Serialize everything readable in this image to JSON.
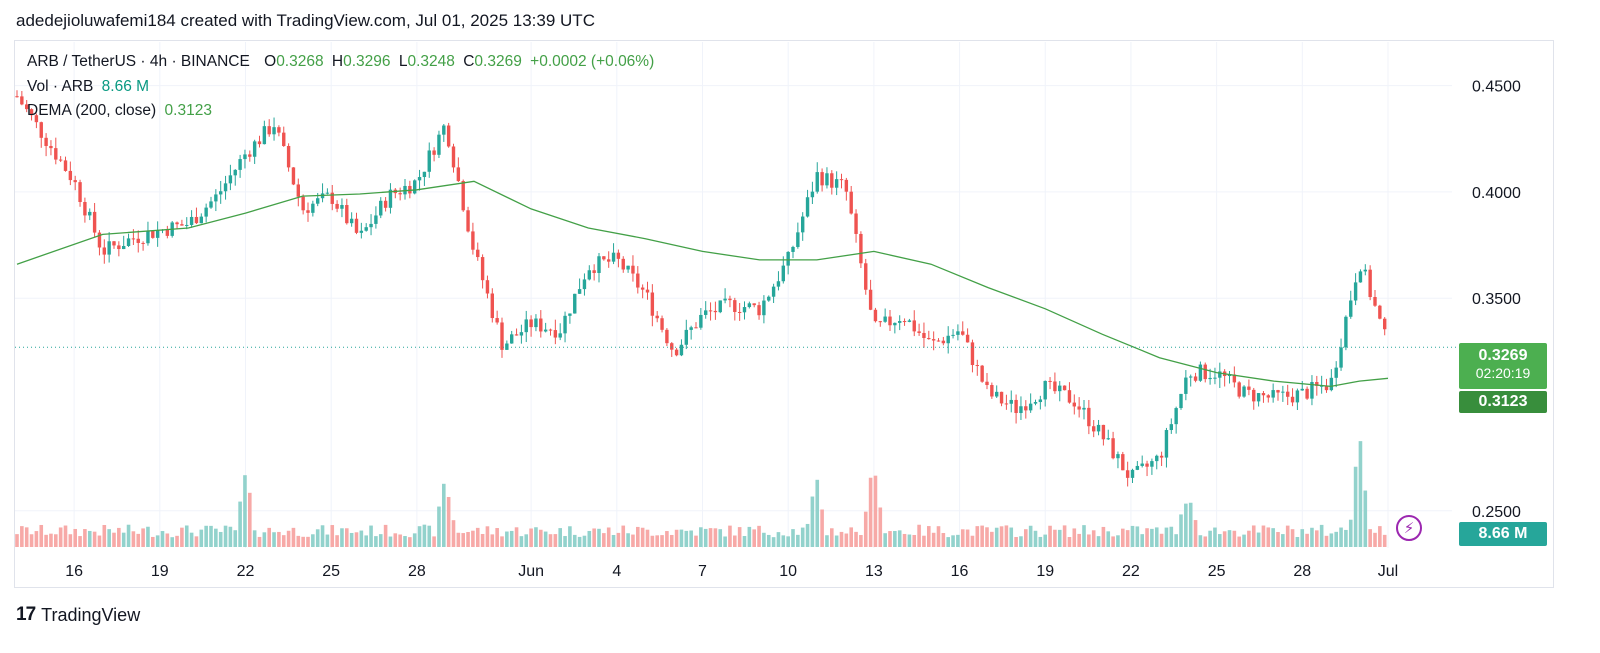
{
  "caption": "adedejioluwafemi184 created with TradingView.com, Jul 01, 2025 13:39 UTC",
  "legend": {
    "symbol": "ARB / TetherUS · 4h · BINANCE",
    "o_label": "O",
    "o_value": "0.3268",
    "h_label": "H",
    "h_value": "0.3296",
    "l_label": "L",
    "l_value": "0.3248",
    "c_label": "C",
    "c_value": "0.3269",
    "change": "+0.0002 (+0.06%)",
    "vol_label": "Vol · ARB",
    "vol_value": "8.66 M",
    "dema_label": "DEMA (200, close)",
    "dema_value": "0.3123"
  },
  "tags": {
    "last_price": "0.3269",
    "countdown": "02:20:19",
    "dema": "0.3123",
    "volume": "8.66 M"
  },
  "colors": {
    "up": "#26a69a",
    "down": "#ef5350",
    "dema": "#43a047",
    "vol_up": "#92d2cc",
    "vol_down": "#f7a9a7"
  },
  "footer": {
    "brand": "TradingView",
    "logo_icon": "tradingview-logo-icon"
  },
  "chart_data": {
    "type": "candlestick",
    "symbol": "ARB / TetherUS",
    "interval": "4h",
    "exchange": "BINANCE",
    "price_axis": {
      "labels": [
        "0.4500",
        "0.4000",
        "0.3500",
        "0.2500"
      ],
      "range": [
        0.2325,
        0.4705
      ]
    },
    "x_ticks": [
      {
        "label": "16",
        "date": "2025-05-16"
      },
      {
        "label": "19",
        "date": "2025-05-19"
      },
      {
        "label": "22",
        "date": "2025-05-22"
      },
      {
        "label": "25",
        "date": "2025-05-25"
      },
      {
        "label": "28",
        "date": "2025-05-28"
      },
      {
        "label": "Jun",
        "date": "2025-06-01"
      },
      {
        "label": "4",
        "date": "2025-06-04"
      },
      {
        "label": "7",
        "date": "2025-06-07"
      },
      {
        "label": "10",
        "date": "2025-06-10"
      },
      {
        "label": "13",
        "date": "2025-06-13"
      },
      {
        "label": "16",
        "date": "2025-06-16"
      },
      {
        "label": "19",
        "date": "2025-06-19"
      },
      {
        "label": "22",
        "date": "2025-06-22"
      },
      {
        "label": "25",
        "date": "2025-06-25"
      },
      {
        "label": "28",
        "date": "2025-06-28"
      },
      {
        "label": "Jul",
        "date": "2025-07-01"
      }
    ],
    "x_range": [
      "2025-05-14",
      "2025-07-01"
    ],
    "close_path": [
      [
        "2025-05-14",
        0.445
      ],
      [
        "2025-05-15",
        0.425
      ],
      [
        "2025-05-16",
        0.405
      ],
      [
        "2025-05-17",
        0.372
      ],
      [
        "2025-05-18",
        0.378
      ],
      [
        "2025-05-19",
        0.382
      ],
      [
        "2025-05-20",
        0.385
      ],
      [
        "2025-05-21",
        0.398
      ],
      [
        "2025-05-22",
        0.418
      ],
      [
        "2025-05-23",
        0.432
      ],
      [
        "2025-05-24",
        0.392
      ],
      [
        "2025-05-25",
        0.398
      ],
      [
        "2025-05-26",
        0.378
      ],
      [
        "2025-05-27",
        0.398
      ],
      [
        "2025-05-28",
        0.405
      ],
      [
        "2025-05-29",
        0.432
      ],
      [
        "2025-05-30",
        0.372
      ],
      [
        "2025-05-31",
        0.328
      ],
      [
        "2025-06-01",
        0.338
      ],
      [
        "2025-06-02",
        0.335
      ],
      [
        "2025-06-03",
        0.365
      ],
      [
        "2025-06-04",
        0.368
      ],
      [
        "2025-06-05",
        0.352
      ],
      [
        "2025-06-06",
        0.325
      ],
      [
        "2025-06-07",
        0.342
      ],
      [
        "2025-06-08",
        0.347
      ],
      [
        "2025-06-09",
        0.345
      ],
      [
        "2025-06-10",
        0.368
      ],
      [
        "2025-06-11",
        0.408
      ],
      [
        "2025-06-12",
        0.402
      ],
      [
        "2025-06-13",
        0.335
      ],
      [
        "2025-06-14",
        0.342
      ],
      [
        "2025-06-15",
        0.328
      ],
      [
        "2025-06-16",
        0.335
      ],
      [
        "2025-06-17",
        0.305
      ],
      [
        "2025-06-18",
        0.298
      ],
      [
        "2025-06-19",
        0.308
      ],
      [
        "2025-06-20",
        0.302
      ],
      [
        "2025-06-21",
        0.285
      ],
      [
        "2025-06-22",
        0.265
      ],
      [
        "2025-06-23",
        0.275
      ],
      [
        "2025-06-24",
        0.315
      ],
      [
        "2025-06-25",
        0.315
      ],
      [
        "2025-06-26",
        0.305
      ],
      [
        "2025-06-27",
        0.303
      ],
      [
        "2025-06-28",
        0.305
      ],
      [
        "2025-06-29",
        0.31
      ],
      [
        "2025-06-30",
        0.368
      ],
      [
        "2025-07-01",
        0.3269
      ]
    ],
    "dema_path": [
      [
        "2025-05-14",
        0.366
      ],
      [
        "2025-05-17",
        0.38
      ],
      [
        "2025-05-20",
        0.383
      ],
      [
        "2025-05-22",
        0.39
      ],
      [
        "2025-05-24",
        0.398
      ],
      [
        "2025-05-26",
        0.399
      ],
      [
        "2025-05-28",
        0.401
      ],
      [
        "2025-05-30",
        0.405
      ],
      [
        "2025-06-01",
        0.392
      ],
      [
        "2025-06-03",
        0.383
      ],
      [
        "2025-06-05",
        0.378
      ],
      [
        "2025-06-07",
        0.372
      ],
      [
        "2025-06-09",
        0.368
      ],
      [
        "2025-06-11",
        0.368
      ],
      [
        "2025-06-13",
        0.372
      ],
      [
        "2025-06-15",
        0.366
      ],
      [
        "2025-06-17",
        0.355
      ],
      [
        "2025-06-19",
        0.345
      ],
      [
        "2025-06-21",
        0.333
      ],
      [
        "2025-06-23",
        0.322
      ],
      [
        "2025-06-25",
        0.315
      ],
      [
        "2025-06-27",
        0.311
      ],
      [
        "2025-06-29",
        0.3085
      ],
      [
        "2025-06-30",
        0.311
      ],
      [
        "2025-07-01",
        0.3123
      ]
    ],
    "volume_spikes": [
      [
        "2025-05-22",
        1.0
      ],
      [
        "2025-05-29",
        0.95
      ],
      [
        "2025-06-11",
        0.9
      ],
      [
        "2025-06-13",
        1.3
      ],
      [
        "2025-06-24",
        0.75
      ],
      [
        "2025-06-30",
        1.9
      ]
    ],
    "last_price": 0.3269,
    "dema_last": 0.3123,
    "volume_last": "8.66 M"
  }
}
